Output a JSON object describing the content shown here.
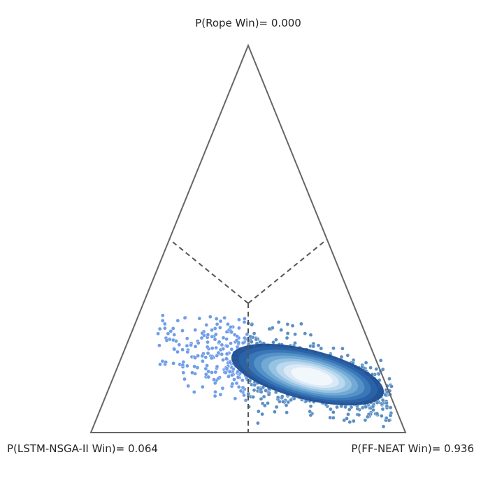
{
  "chart_data": {
    "type": "scatter",
    "subtype": "ternary-bayesian-posterior",
    "vertex_labels": {
      "top": "P(Rope Win)= 0.000",
      "left": "P(LSTM-NSGA-II Win)= 0.064",
      "right": "P(FF-NEAT Win)= 0.936"
    },
    "probabilities": {
      "rope": 0.0,
      "left": 0.064,
      "right": 0.936
    },
    "regions": [
      "rope",
      "left",
      "right"
    ],
    "posterior_center": {
      "right": 0.68,
      "left": 0.2,
      "rope": 0.12
    },
    "colors": {
      "frame": "#666666",
      "divider": "#555555",
      "left_points": "#6f9de8",
      "right_points": "#5b8fc4",
      "point_edge": "#ffffff",
      "density": [
        "#1f4f93",
        "#2a63a8",
        "#3a78b8",
        "#5592c7",
        "#74abd6",
        "#98c4e3",
        "#bcd9ee",
        "#dceaf6",
        "#f3f8fc"
      ]
    }
  }
}
